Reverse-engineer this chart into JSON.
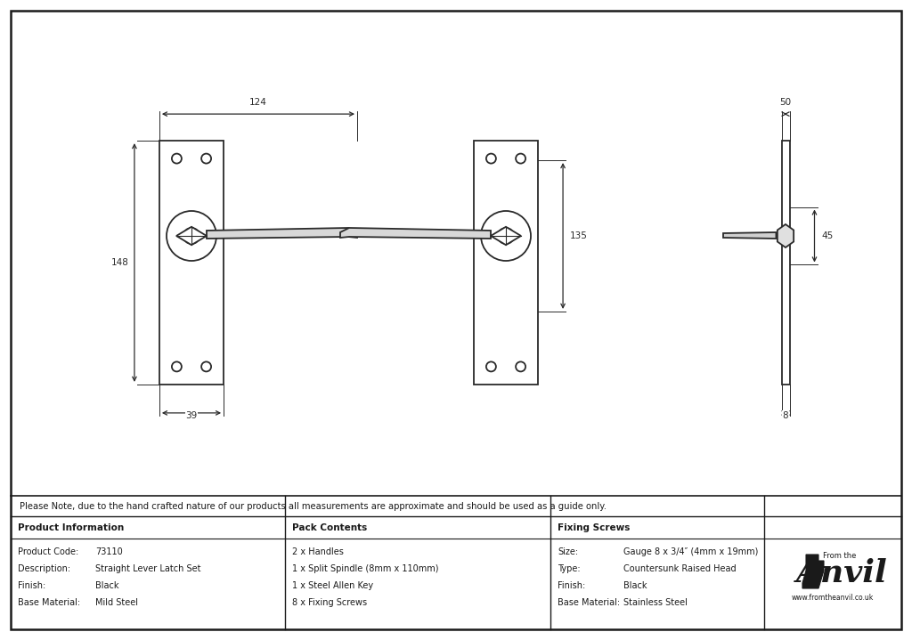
{
  "bg_color": "#ffffff",
  "line_color": "#2a2a2a",
  "dim_color": "#2a2a2a",
  "note_text": "Please Note, due to the hand crafted nature of our products all measurements are approximate and should be used as a guide only.",
  "table_data": {
    "product_info_header": "Product Information",
    "pack_contents_header": "Pack Contents",
    "fixing_screws_header": "Fixing Screws",
    "product_code_label": "Product Code:",
    "product_code_value": "73110",
    "description_label": "Description:",
    "description_value": "Straight Lever Latch Set",
    "finish_label": "Finish:",
    "finish_value": "Black",
    "base_material_label": "Base Material:",
    "base_material_value": "Mild Steel",
    "pack_line1": "2 x Handles",
    "pack_line2": "1 x Split Spindle (8mm x 110mm)",
    "pack_line3": "1 x Steel Allen Key",
    "pack_line4": "8 x Fixing Screws",
    "fix_size_label": "Size:",
    "fix_size_value": "Gauge 8 x 3/4″ (4mm x 19mm)",
    "fix_type_label": "Type:",
    "fix_type_value": "Countersunk Raised Head",
    "fix_finish_label": "Finish:",
    "fix_finish_value": "Black",
    "fix_base_label": "Base Material:",
    "fix_base_value": "Stainless Steel"
  },
  "dims": {
    "width_124": "124",
    "height_148": "148",
    "width_39": "39",
    "height_135": "135",
    "height_45": "45",
    "width_50": "50",
    "width_8": "8"
  }
}
